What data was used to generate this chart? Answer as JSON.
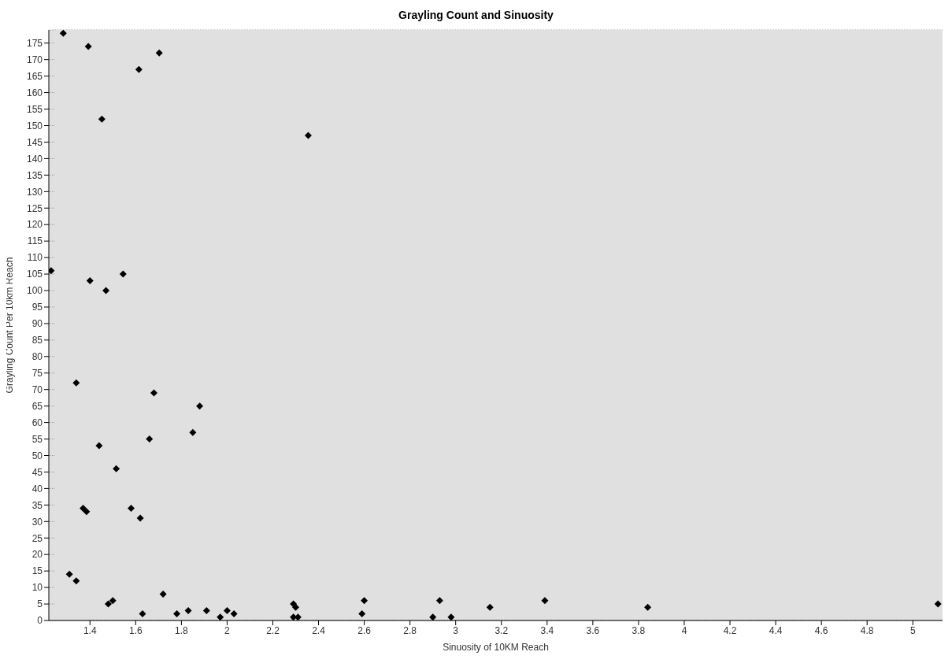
{
  "chart_data": {
    "type": "scatter",
    "title": "Grayling Count and Sinuosity",
    "xlabel": "Sinuosity of 10KM Reach",
    "ylabel": "Grayling Count Per 10km Reach",
    "x": [
      1.283,
      1.393,
      1.703,
      1.614,
      1.452,
      2.355,
      1.23,
      1.4,
      1.47,
      1.545,
      1.34,
      1.68,
      1.88,
      1.85,
      1.66,
      1.44,
      1.515,
      1.37,
      1.385,
      1.58,
      1.62,
      1.31,
      1.34,
      1.48,
      1.5,
      1.72,
      1.63,
      1.78,
      1.83,
      1.91,
      1.97,
      2.0,
      2.03,
      2.29,
      2.3,
      2.29,
      2.31,
      2.6,
      2.59,
      2.9,
      2.93,
      2.98,
      3.15,
      3.39,
      3.84,
      5.11
    ],
    "values": [
      178,
      174,
      172,
      167,
      152,
      147,
      106,
      103,
      100,
      105,
      72,
      69,
      65,
      57,
      55,
      53,
      46,
      34,
      33,
      34,
      31,
      14,
      12,
      5,
      6,
      8,
      2,
      2,
      3,
      3,
      1,
      3,
      2,
      5,
      4,
      1,
      1,
      6,
      2,
      1,
      6,
      1,
      4,
      6,
      4,
      5
    ],
    "color": "#000000",
    "marker": "diamond",
    "grid": "y",
    "legend": false,
    "xlim": [
      1.22,
      5.13
    ],
    "xticks": [
      1.4,
      1.6,
      1.8,
      2,
      2.2,
      2.4,
      2.6,
      2.8,
      3,
      3.2,
      3.4,
      3.6,
      3.8,
      4,
      4.2,
      4.4,
      4.6,
      4.8,
      5
    ],
    "ylim": [
      0,
      179
    ],
    "yticks": [
      0,
      5,
      10,
      15,
      20,
      25,
      30,
      35,
      40,
      45,
      50,
      55,
      60,
      65,
      70,
      75,
      80,
      85,
      90,
      95,
      100,
      105,
      110,
      115,
      120,
      125,
      130,
      135,
      140,
      145,
      150,
      155,
      160,
      165,
      170,
      175
    ]
  }
}
